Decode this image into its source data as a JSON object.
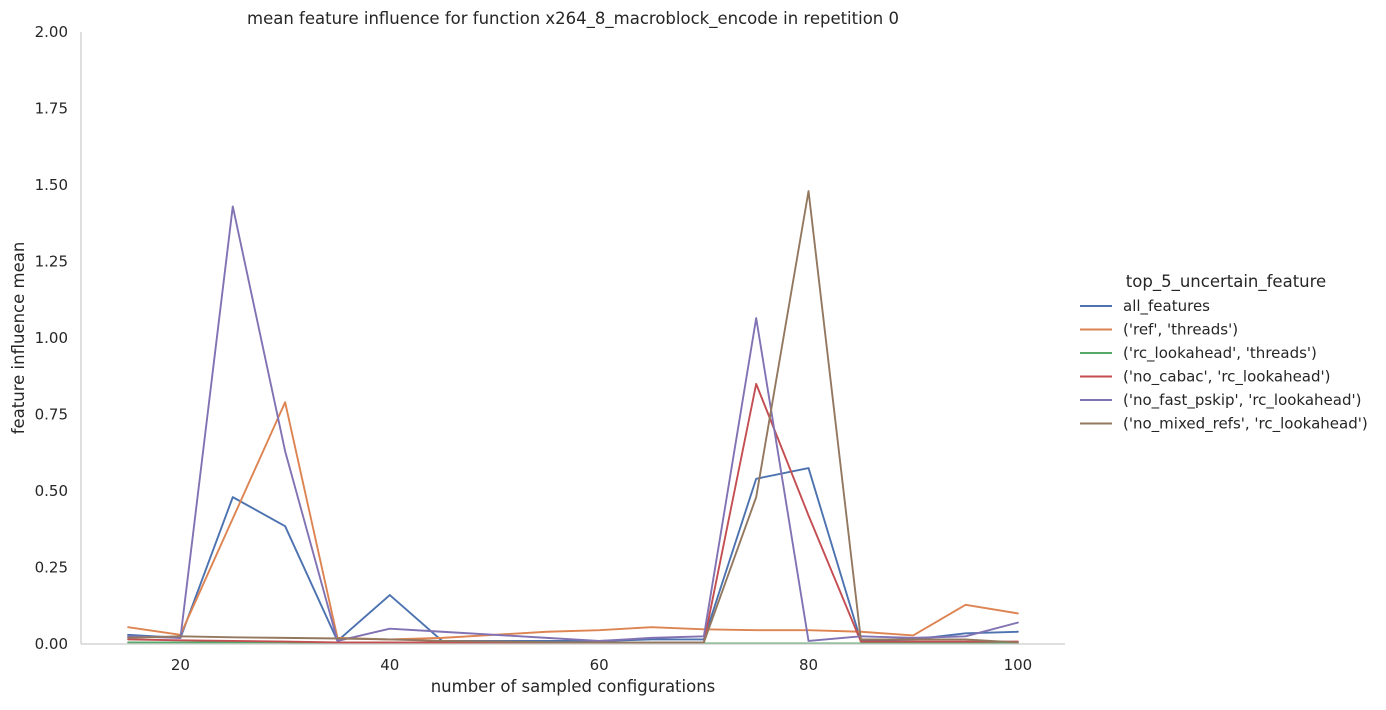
{
  "chart_data": {
    "type": "line",
    "title": "mean feature influence for function x264_8_macroblock_encode in repetition 0",
    "xlabel": "number of sampled configurations",
    "ylabel": "feature influence mean",
    "xlim": [
      10.5,
      104.5
    ],
    "ylim": [
      0,
      2.0
    ],
    "xticks": [
      20,
      40,
      60,
      80,
      100
    ],
    "xtick_labels": [
      "20",
      "40",
      "60",
      "80",
      "100"
    ],
    "yticks": [
      0,
      0.25,
      0.5,
      0.75,
      1.0,
      1.25,
      1.5,
      1.75,
      2.0
    ],
    "ytick_labels": [
      "0.00",
      "0.25",
      "0.50",
      "0.75",
      "1.00",
      "1.25",
      "1.50",
      "1.75",
      "2.00"
    ],
    "grid": false,
    "legend_title": "top_5_uncertain_feature",
    "legend_position": "right",
    "x": [
      15,
      20,
      25,
      30,
      35,
      40,
      45,
      50,
      55,
      60,
      65,
      70,
      75,
      80,
      85,
      90,
      95,
      100
    ],
    "series": [
      {
        "name": "all_features",
        "color": "#4c72b0",
        "values": [
          0.03,
          0.02,
          0.48,
          0.385,
          0.01,
          0.16,
          0.01,
          0.01,
          0.01,
          0.01,
          0.015,
          0.015,
          0.54,
          0.575,
          0.01,
          0.015,
          0.035,
          0.04
        ]
      },
      {
        "name": "('ref', 'threads')",
        "color": "#dd8452",
        "values": [
          0.055,
          0.03,
          0.41,
          0.79,
          0.02,
          0.015,
          0.02,
          0.03,
          0.04,
          0.045,
          0.055,
          0.048,
          0.045,
          0.045,
          0.04,
          0.028,
          0.128,
          0.1
        ]
      },
      {
        "name": "('rc_lookahead', 'threads')",
        "color": "#55a868",
        "values": [
          0.005,
          0.005,
          0.005,
          0.005,
          0.002,
          0.002,
          0.002,
          0.002,
          0.002,
          0.002,
          0.002,
          0.002,
          0.002,
          0.002,
          0.002,
          0.002,
          0.002,
          0.002
        ]
      },
      {
        "name": "('no_cabac', 'rc_lookahead')",
        "color": "#c44e52",
        "values": [
          0.015,
          0.012,
          0.01,
          0.008,
          0.005,
          0.005,
          0.005,
          0.005,
          0.005,
          0.005,
          0.005,
          0.005,
          0.85,
          0.42,
          0.008,
          0.008,
          0.008,
          0.008
        ]
      },
      {
        "name": "('no_fast_pskip', 'rc_lookahead')",
        "color": "#8172b3",
        "values": [
          0.025,
          0.02,
          1.43,
          0.63,
          0.01,
          0.05,
          0.04,
          0.03,
          0.02,
          0.01,
          0.02,
          0.025,
          1.065,
          0.01,
          0.025,
          0.02,
          0.025,
          0.07
        ]
      },
      {
        "name": "('no_mixed_refs', 'rc_lookahead')",
        "color": "#937860",
        "values": [
          0.02,
          0.025,
          0.022,
          0.02,
          0.018,
          0.015,
          0.01,
          0.008,
          0.006,
          0.005,
          0.005,
          0.005,
          0.48,
          1.48,
          0.015,
          0.015,
          0.015,
          0.005
        ]
      }
    ]
  }
}
